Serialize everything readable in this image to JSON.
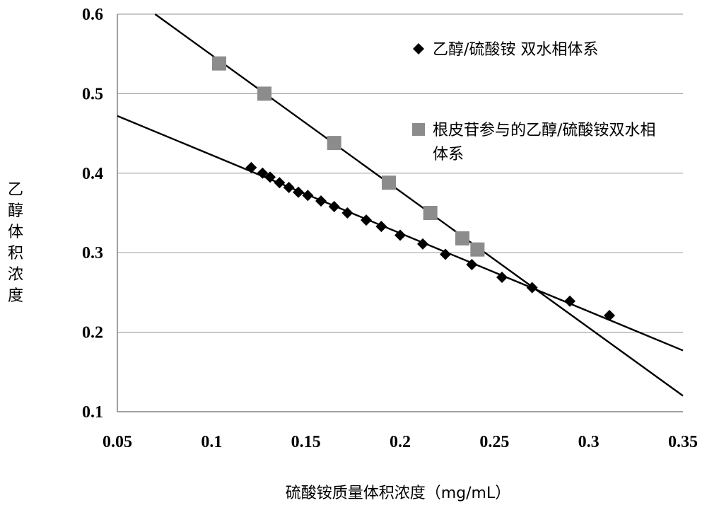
{
  "chart_data": {
    "type": "scatter",
    "title": "",
    "xlabel": "硫酸铵质量体积浓度（mg/mL）",
    "ylabel": "乙醇体积浓度",
    "xlim": [
      0.05,
      0.35
    ],
    "ylim": [
      0.1,
      0.6
    ],
    "xticks": [
      "0.05",
      "0.1",
      "0.15",
      "0.2",
      "0.25",
      "0.3",
      "0.35"
    ],
    "yticks": [
      "0.1",
      "0.2",
      "0.3",
      "0.4",
      "0.5",
      "0.6"
    ],
    "grid": "horizontal",
    "legend_position": "top-right",
    "series": [
      {
        "name": "乙醇/硫酸铵 双水相体系",
        "marker": "diamond",
        "color": "#000000",
        "x": [
          0.121,
          0.127,
          0.131,
          0.136,
          0.141,
          0.146,
          0.151,
          0.158,
          0.165,
          0.172,
          0.182,
          0.19,
          0.2,
          0.212,
          0.224,
          0.238,
          0.254,
          0.27,
          0.29,
          0.311
        ],
        "y": [
          0.407,
          0.4,
          0.395,
          0.388,
          0.382,
          0.376,
          0.372,
          0.365,
          0.358,
          0.35,
          0.341,
          0.333,
          0.322,
          0.311,
          0.298,
          0.285,
          0.269,
          0.256,
          0.239,
          0.221
        ],
        "trendline": {
          "from": [
            0.05,
            0.472
          ],
          "to": [
            0.35,
            0.177
          ]
        }
      },
      {
        "name": "根皮苷参与的乙醇/硫酸铵双水相体系",
        "marker": "square",
        "color": "#8c8c8c",
        "x": [
          0.104,
          0.128,
          0.165,
          0.194,
          0.216,
          0.233,
          0.241
        ],
        "y": [
          0.538,
          0.5,
          0.438,
          0.388,
          0.35,
          0.318,
          0.304
        ],
        "trendline": {
          "from": [
            0.07,
            0.6
          ],
          "to": [
            0.35,
            0.12
          ]
        }
      }
    ]
  }
}
